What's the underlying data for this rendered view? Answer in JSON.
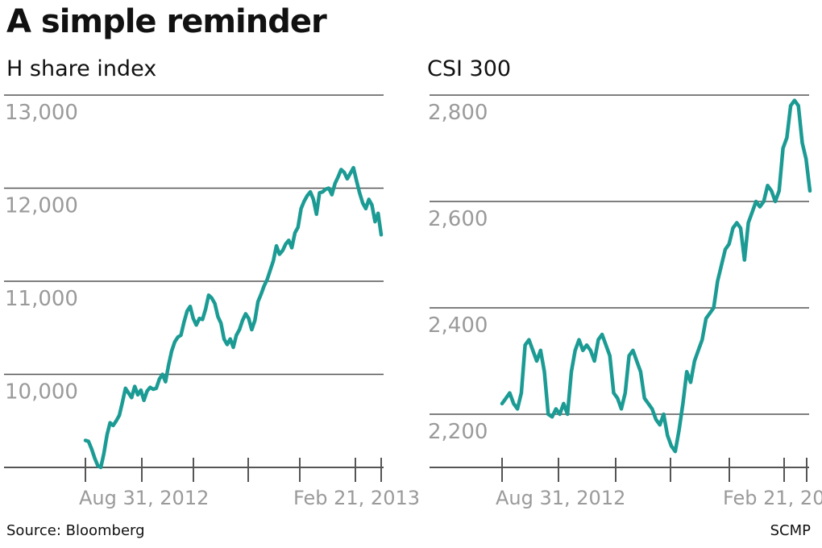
{
  "headline": "A simple reminder",
  "source": "Source: Bloomberg",
  "credit": "SCMP",
  "colors": {
    "line": "#1b9b94",
    "grid": "#555555",
    "tick_text": "#9a9a9a"
  },
  "chart_data": [
    {
      "type": "line",
      "title": "H share index",
      "ylim": [
        9000,
        13000
      ],
      "yticks": [
        10000,
        11000,
        12000,
        13000
      ],
      "ytick_labels": [
        "10,000",
        "11,000",
        "12,000",
        "13,000"
      ],
      "xticks": [
        0,
        29,
        58,
        87,
        116,
        145,
        174
      ],
      "xtick_labels": [
        {
          "i": 0,
          "label": "Aug 31, 2012"
        },
        {
          "i": 116,
          "label": "Feb 21, 2013"
        }
      ],
      "grid": true,
      "series": [
        {
          "values": [
            9290,
            9280,
            9200,
            9100,
            9020,
            9000,
            9150,
            9350,
            9480,
            9450,
            9500,
            9560,
            9700,
            9850,
            9800,
            9750,
            9870,
            9780,
            9830,
            9720,
            9820,
            9860,
            9840,
            9850,
            9950,
            10000,
            9920,
            10100,
            10250,
            10350,
            10400,
            10420,
            10560,
            10680,
            10730,
            10600,
            10530,
            10600,
            10590,
            10700,
            10850,
            10820,
            10760,
            10620,
            10550,
            10380,
            10320,
            10380,
            10290,
            10420,
            10480,
            10580,
            10650,
            10600,
            10480,
            10580,
            10780,
            10860,
            10950,
            11020,
            11120,
            11220,
            11380,
            11290,
            11330,
            11400,
            11440,
            11360,
            11520,
            11580,
            11780,
            11860,
            11920,
            11960,
            11880,
            11720,
            11950,
            11960,
            11990,
            12000,
            11930,
            12050,
            12120,
            12200,
            12170,
            12100,
            12160,
            12220,
            12080,
            11950,
            11840,
            11780,
            11880,
            11820,
            11640,
            11730,
            11500
          ]
        }
      ]
    },
    {
      "type": "line",
      "title": "CSI 300",
      "ylim": [
        2100,
        2800
      ],
      "yticks": [
        2200,
        2400,
        2600,
        2800
      ],
      "ytick_labels": [
        "2,200",
        "2,400",
        "2,600",
        "2,800"
      ],
      "xticks": [
        0,
        29,
        58,
        87,
        116,
        145,
        174
      ],
      "xtick_labels": [
        {
          "i": 0,
          "label": "Aug 31, 2012"
        },
        {
          "i": 116,
          "label": "Feb 21, 2013"
        }
      ],
      "grid": true,
      "series": [
        {
          "values": [
            2220,
            2230,
            2240,
            2220,
            2210,
            2240,
            2330,
            2340,
            2320,
            2300,
            2320,
            2280,
            2200,
            2195,
            2210,
            2200,
            2220,
            2200,
            2280,
            2320,
            2340,
            2320,
            2330,
            2320,
            2300,
            2340,
            2350,
            2330,
            2310,
            2240,
            2230,
            2210,
            2240,
            2310,
            2320,
            2300,
            2280,
            2230,
            2220,
            2210,
            2190,
            2180,
            2200,
            2160,
            2140,
            2130,
            2170,
            2220,
            2280,
            2260,
            2300,
            2320,
            2340,
            2380,
            2390,
            2400,
            2450,
            2480,
            2510,
            2520,
            2550,
            2560,
            2550,
            2490,
            2560,
            2580,
            2600,
            2590,
            2600,
            2630,
            2620,
            2600,
            2620,
            2700,
            2720,
            2780,
            2790,
            2780,
            2710,
            2680,
            2620
          ]
        }
      ]
    }
  ]
}
